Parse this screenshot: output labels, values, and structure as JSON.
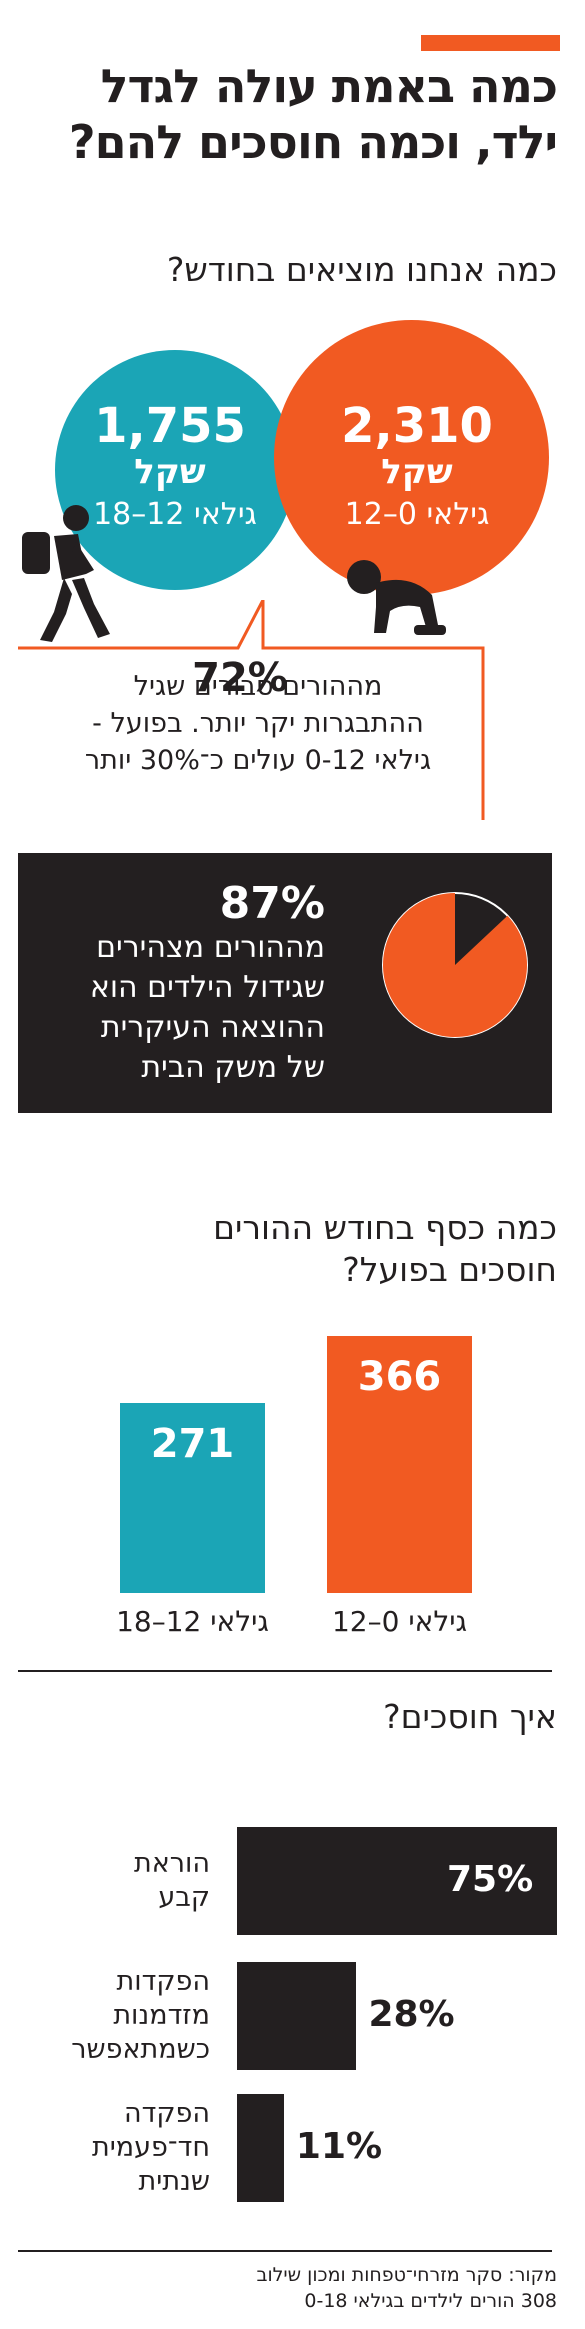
{
  "headline": [
    "כמה באמת עולה לגדל",
    "ילד, וכמה חוסכים להם?"
  ],
  "spend": {
    "title": "כמה אנחנו מוציאים בחודש?",
    "items": [
      {
        "value": "2,310",
        "currency": "שקל",
        "age": "גילאי 0–12",
        "color": "#f15a22"
      },
      {
        "value": "1,755",
        "currency": "שקל",
        "age": "גילאי 12–18",
        "color": "#1ba5b6"
      }
    ]
  },
  "callout": {
    "percent": "72%",
    "lines": [
      "מההורים סבורים שגיל",
      "ההתבגרות יקר יותר. בפועל -",
      "גילאי 0-12 עולים כ־30% יותר"
    ]
  },
  "stat87": {
    "percent": "87%",
    "lines": [
      "מההורים מצהירים",
      "שגידול הילדים הוא",
      "ההוצאה העיקרית",
      "של משק הבית"
    ],
    "fraction": 0.87,
    "color": "#f15a22"
  },
  "chart_data": [
    {
      "type": "bar",
      "title": "כמה כסף בחודש ההורים חוסכים בפועל?",
      "categories": [
        "גילאי 0–12",
        "גילאי 12–18"
      ],
      "values": [
        366,
        271
      ],
      "colors": [
        "#f15a22",
        "#1ba5b6"
      ]
    },
    {
      "type": "bar",
      "orientation": "horizontal",
      "title": "איך חוסכים?",
      "categories": [
        [
          "הוראת",
          "קבע"
        ],
        [
          "הפקדות",
          "מזדמנות",
          "כשמתאפשר"
        ],
        [
          "הפקדה",
          "חד־פעמית",
          "שנתית"
        ]
      ],
      "values": [
        75,
        28,
        11
      ],
      "value_labels": [
        "75%",
        "28%",
        "11%"
      ],
      "xlim": [
        0,
        75
      ]
    }
  ],
  "savings_title": [
    "כמה כסף בחודש ההורים",
    "חוסכים בפועל?"
  ],
  "how_title": "איך חוסכים?",
  "source": [
    "מקור: סקר מזרחי־טפחות ומכון שילוב",
    "308 הורים לילדים בגילאי 0-18"
  ]
}
